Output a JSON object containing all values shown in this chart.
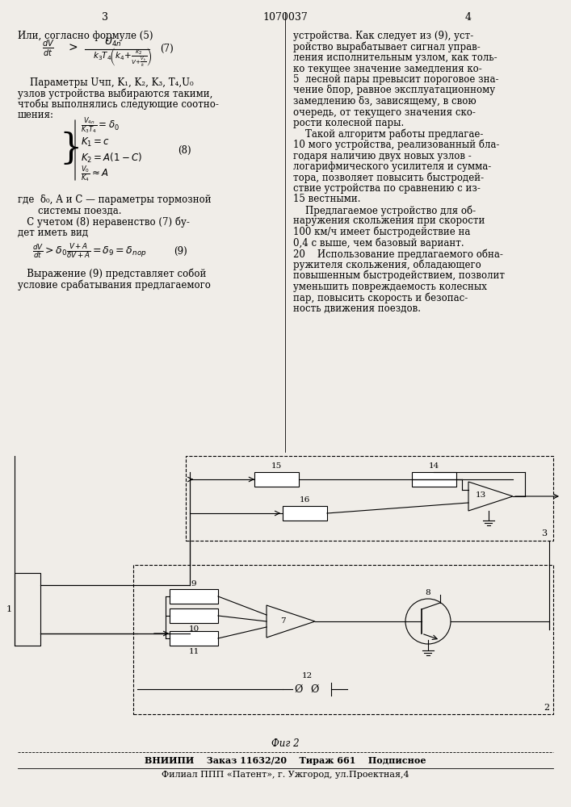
{
  "page_color": "#f0ede8",
  "header_num": "1070037",
  "page_left": "3",
  "page_right": "4",
  "left_text": [
    "Или, согласно формуле (5)",
    "",
    "formula_7",
    "",
    "    Параметры Uчп, K₁, K₂, K₃, T₄, U₀",
    "узлов устройства выбираются такими,",
    "чтобы выполнялись следующие соотно-",
    "шения:",
    "",
    "formula_8",
    "",
    "где  δ₀, A и C — параметры тормозной",
    "         системы поезда.",
    "   С учетом (8) неравенство (7) бу-",
    "дет иметь вид",
    "",
    "formula_9",
    "",
    "   Выражение (9) представляет собой",
    "условие срабатывания предлагаемого"
  ],
  "right_text": [
    "устройства. Как следует из (9), уст-",
    "ройство вырабатывает сигнал управ-",
    "ления исполнительным узлом, как толь-",
    "ко текущее значение замедления ко-",
    "5  лесной пары превысит пороговое зна-",
    "чение δпор, равное эксплуатационному",
    "замедлению δз, зависящему, в свою",
    "очередь, от текущего значения ско-",
    "рости колесной пары.",
    "    Такой алгоритм работы предлагае-",
    "10 мого устройства, реализованный бла-",
    "годаря наличию двух новых узлов -",
    "логарифмического усилителя и сумма-",
    "тора, позволяет повысить быстродей-",
    "ствие устройства по сравнению с из-",
    "15 вестными.",
    "    Предлагаемое устройство для об-",
    "наружения скольжения при скорости",
    "100 км/ч имеет быстродействие на",
    "0,4 с выше, чем базовый вариант.",
    "20    Использование предлагаемого обна-",
    "ружителя скольжения, обладающего",
    "повышенным быстродействием, позволит",
    "уменьшить повреждаемость колесных",
    "пар, повысить скорость и безопас-",
    "ность движения поездов."
  ],
  "footer_line1": "ВНИИПИ    Заказ 11632/20    Тираж 661    Подписное",
  "footer_line2": "Филиал ППП «Патент», г. Ужгород, ул.Проектная,4",
  "fig_label": "Фиг 2"
}
